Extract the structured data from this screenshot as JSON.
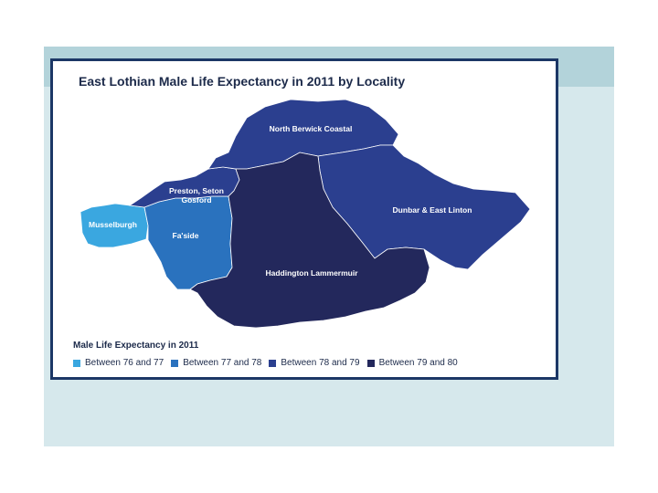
{
  "map": {
    "title": "East Lothian Male Life Expectancy in 2011 by Locality",
    "regions": [
      {
        "name": "North Berwick Coastal",
        "band": "Between 78 and 79"
      },
      {
        "name": "Preston, Seton Gosford",
        "name_lines": [
          "Preston, Seton",
          "Gosford"
        ],
        "band": "Between 78 and 79"
      },
      {
        "name": "Musselburgh",
        "band": "Between 76 and 77"
      },
      {
        "name": "Fa'side",
        "band": "Between 77 and 78"
      },
      {
        "name": "Dunbar & East Linton",
        "band": "Between 78 and 79"
      },
      {
        "name": "Haddington Lammermuir",
        "band": "Between 79 and 80"
      }
    ],
    "legend": {
      "title": "Male Life Expectancy in 2011",
      "items": [
        {
          "label": "Between 76 and 77",
          "color": "#3aa7e0"
        },
        {
          "label": "Between 77 and 78",
          "color": "#2a72be"
        },
        {
          "label": "Between 78 and 79",
          "color": "#2b3f8f"
        },
        {
          "label": "Between 79 and 80",
          "color": "#23285c"
        }
      ]
    }
  },
  "colors": {
    "slide_background": "#d6e8ec",
    "slide_band": "#b3d3da",
    "panel_border": "#1c3766"
  }
}
